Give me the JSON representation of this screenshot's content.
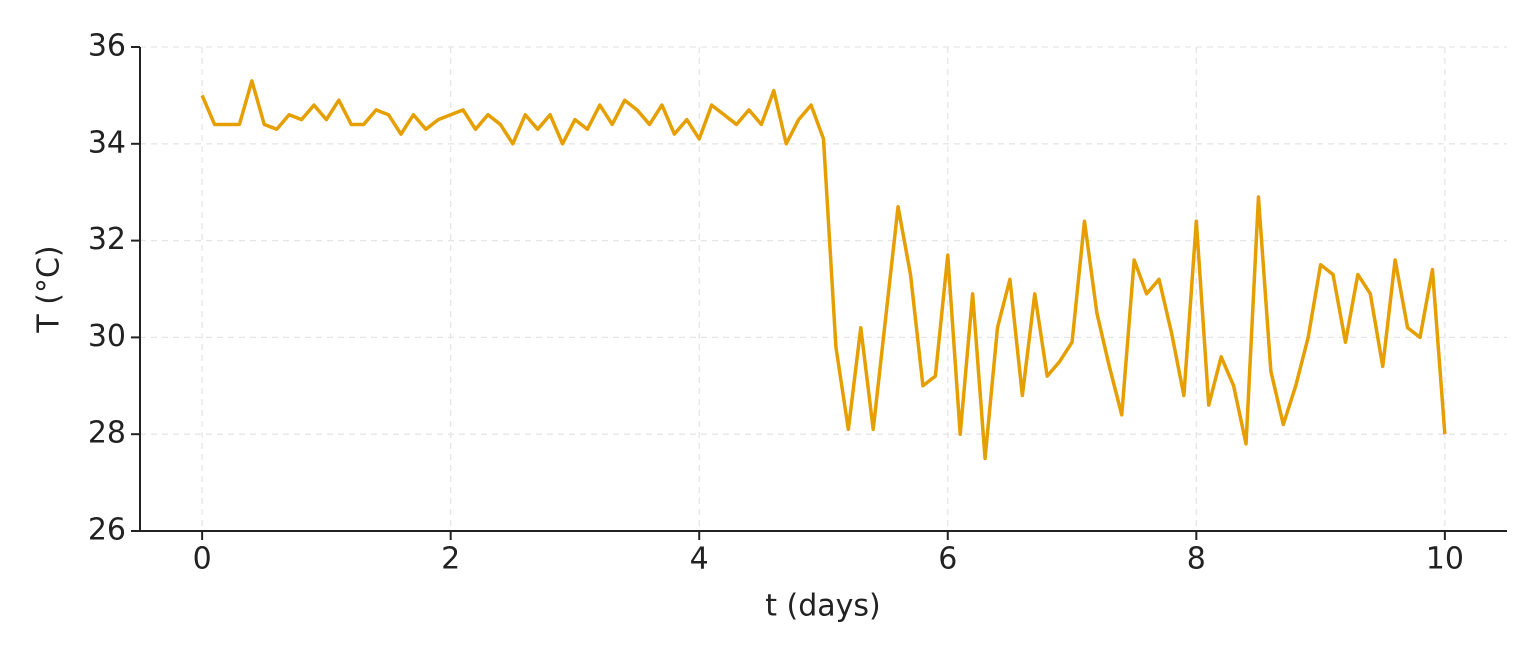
{
  "chart_data": {
    "type": "line",
    "xlabel": "t (days)",
    "ylabel": "T (°C)",
    "x": [
      0,
      0.1,
      0.2,
      0.3,
      0.4,
      0.5,
      0.6,
      0.7,
      0.8,
      0.9,
      1,
      1.1,
      1.2,
      1.3,
      1.4,
      1.5,
      1.6,
      1.7,
      1.8,
      1.9,
      2,
      2.1,
      2.2,
      2.3,
      2.4,
      2.5,
      2.6,
      2.7,
      2.8,
      2.9,
      3,
      3.1,
      3.2,
      3.3,
      3.4,
      3.5,
      3.6,
      3.7,
      3.8,
      3.9,
      4,
      4.1,
      4.2,
      4.3,
      4.4,
      4.5,
      4.6,
      4.7,
      4.8,
      4.9,
      5,
      5.1,
      5.2,
      5.3,
      5.4,
      5.5,
      5.6,
      5.7,
      5.8,
      5.9,
      6,
      6.1,
      6.2,
      6.3,
      6.4,
      6.5,
      6.6,
      6.7,
      6.8,
      6.9,
      7,
      7.1,
      7.2,
      7.3,
      7.4,
      7.5,
      7.6,
      7.7,
      7.8,
      7.9,
      8,
      8.1,
      8.2,
      8.3,
      8.4,
      8.5,
      8.6,
      8.7,
      8.8,
      8.9,
      9,
      9.1,
      9.2,
      9.3,
      9.4,
      9.5,
      9.6,
      9.7,
      9.8,
      9.9,
      10
    ],
    "series": [
      {
        "color": "#e69f00",
        "values": [
          35.0,
          34.4,
          34.4,
          34.4,
          35.3,
          34.4,
          34.3,
          34.6,
          34.5,
          34.8,
          34.5,
          34.9,
          34.4,
          34.4,
          34.7,
          34.6,
          34.2,
          34.6,
          34.3,
          34.5,
          34.6,
          34.7,
          34.3,
          34.6,
          34.4,
          34.0,
          34.6,
          34.3,
          34.6,
          34.0,
          34.5,
          34.3,
          34.8,
          34.4,
          34.9,
          34.7,
          34.4,
          34.8,
          34.2,
          34.5,
          34.1,
          34.8,
          34.6,
          34.4,
          34.7,
          34.4,
          35.1,
          34.0,
          34.5,
          34.8,
          34.1,
          29.8,
          28.1,
          30.2,
          28.1,
          30.4,
          32.7,
          31.3,
          29.0,
          29.2,
          31.7,
          28.0,
          30.9,
          27.5,
          30.2,
          31.2,
          28.8,
          30.9,
          29.2,
          29.5,
          29.9,
          32.4,
          30.5,
          29.4,
          28.4,
          31.6,
          30.9,
          31.2,
          30.1,
          28.8,
          32.4,
          28.6,
          29.6,
          29.0,
          27.8,
          32.9,
          29.3,
          28.2,
          29.0,
          30.0,
          31.5,
          31.3,
          29.9,
          31.3,
          30.9,
          29.4,
          31.6,
          30.2,
          30.0,
          31.4,
          28.0
        ]
      }
    ],
    "xlim": [
      -0.5,
      10.5
    ],
    "ylim": [
      26,
      36
    ],
    "xticks": [
      0,
      2,
      4,
      6,
      8,
      10
    ],
    "yticks": [
      26,
      28,
      30,
      32,
      34,
      36
    ],
    "grid": true
  }
}
